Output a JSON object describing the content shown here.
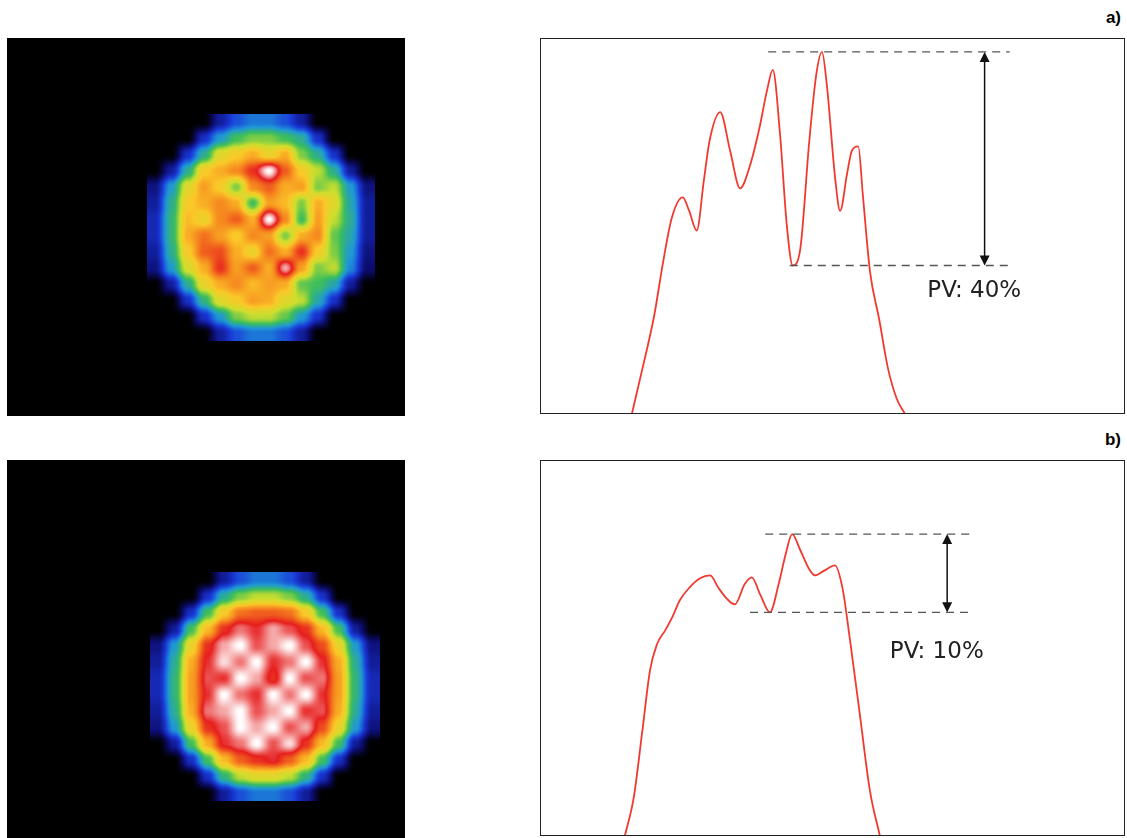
{
  "chart_data": [
    {
      "type": "heatmap",
      "xlim": [
        0,
        398
      ],
      "ylim": [
        0,
        380
      ],
      "tick_labels": false,
      "grid": false,
      "zlim": [
        0,
        1
      ],
      "cells_xlim": [
        140,
        368
      ],
      "cells_ylim": [
        76,
        304
      ],
      "cells": [
        [
          0,
          0,
          0,
          0,
          0.15,
          0.25,
          0.3,
          0.3,
          0.25,
          0.15,
          0,
          0,
          0,
          0
        ],
        [
          0,
          0,
          0,
          0.2,
          0.35,
          0.45,
          0.5,
          0.5,
          0.45,
          0.4,
          0.2,
          0,
          0,
          0
        ],
        [
          0,
          0,
          0.2,
          0.4,
          0.6,
          0.65,
          0.7,
          0.62,
          0.7,
          0.5,
          0.4,
          0.2,
          0,
          0
        ],
        [
          0,
          0.15,
          0.4,
          0.65,
          0.7,
          0.75,
          0.85,
          1.0,
          0.8,
          0.65,
          0.55,
          0.4,
          0.15,
          0
        ],
        [
          0.12,
          0.35,
          0.6,
          0.72,
          0.65,
          0.5,
          0.75,
          0.8,
          0.7,
          0.72,
          0.5,
          0.55,
          0.35,
          0.12
        ],
        [
          0.15,
          0.4,
          0.65,
          0.7,
          0.75,
          0.7,
          0.45,
          0.72,
          0.68,
          0.5,
          0.7,
          0.6,
          0.38,
          0.15
        ],
        [
          0.18,
          0.42,
          0.68,
          0.62,
          0.75,
          0.8,
          0.7,
          1.0,
          0.75,
          0.45,
          0.72,
          0.55,
          0.4,
          0.15
        ],
        [
          0.18,
          0.42,
          0.7,
          0.78,
          0.72,
          0.65,
          0.75,
          0.72,
          0.5,
          0.7,
          0.75,
          0.48,
          0.38,
          0.15
        ],
        [
          0.15,
          0.4,
          0.65,
          0.8,
          0.82,
          0.7,
          0.62,
          0.78,
          0.7,
          0.85,
          0.65,
          0.5,
          0.35,
          0.12
        ],
        [
          0.12,
          0.35,
          0.58,
          0.7,
          0.85,
          0.72,
          0.8,
          0.7,
          0.95,
          0.72,
          0.5,
          0.55,
          0.32,
          0.1
        ],
        [
          0,
          0.15,
          0.4,
          0.62,
          0.7,
          0.75,
          0.68,
          0.72,
          0.7,
          0.48,
          0.45,
          0.38,
          0.15,
          0
        ],
        [
          0,
          0,
          0.2,
          0.42,
          0.6,
          0.65,
          0.72,
          0.7,
          0.6,
          0.55,
          0.38,
          0.2,
          0,
          0
        ],
        [
          0,
          0,
          0,
          0.2,
          0.35,
          0.5,
          0.55,
          0.55,
          0.48,
          0.35,
          0.2,
          0,
          0,
          0
        ],
        [
          0,
          0,
          0,
          0,
          0.15,
          0.25,
          0.3,
          0.3,
          0.25,
          0.15,
          0,
          0,
          0,
          0
        ]
      ]
    },
    {
      "type": "line",
      "panel": "a)",
      "xlim": [
        0,
        100
      ],
      "ylim": [
        0,
        100
      ],
      "tick_labels": false,
      "grid": false,
      "color": "#f03a30",
      "x": [
        15.7,
        17.5,
        19.5,
        21,
        22.5,
        24.4,
        25.5,
        26.8,
        28,
        29,
        30.8,
        32.5,
        34.2,
        35.9,
        37.5,
        38.8,
        39.8,
        41,
        42.2,
        43.2,
        44.5,
        46,
        47.2,
        48.2,
        49,
        50.5,
        51.3,
        52.5,
        53.3,
        54.4,
        55.2,
        56.4,
        58,
        59.5,
        61,
        62.4
      ],
      "values": [
        0,
        12,
        26,
        40,
        52,
        57.6,
        54,
        48.8,
        62,
        72.8,
        80.3,
        70,
        60,
        66.1,
        76,
        86,
        91.5,
        75,
        50,
        39.5,
        44,
        72,
        90,
        96.3,
        88,
        62,
        54,
        64,
        70,
        71.2,
        58,
        38,
        25,
        12,
        4,
        0
      ],
      "peak_valley": {
        "top": 96.3,
        "bottom": 39.5,
        "top_x": [
          39,
          80.3
        ],
        "bottom_x": [
          42.7,
          80.3
        ],
        "arrow_x": 76
      },
      "annotations": [
        {
          "text": "PV: 40%",
          "x": 66.2,
          "y": 32.8
        }
      ]
    },
    {
      "type": "heatmap",
      "xlim": [
        0,
        398
      ],
      "ylim": [
        0,
        380
      ],
      "tick_labels": false,
      "grid": false,
      "zlim": [
        0,
        1
      ],
      "cells_xlim": [
        143,
        373
      ],
      "cells_ylim": [
        113,
        343
      ],
      "cells": [
        [
          0,
          0,
          0,
          0,
          0.15,
          0.25,
          0.3,
          0.3,
          0.25,
          0.15,
          0,
          0,
          0,
          0
        ],
        [
          0,
          0,
          0,
          0.2,
          0.4,
          0.5,
          0.55,
          0.55,
          0.5,
          0.4,
          0.2,
          0,
          0,
          0
        ],
        [
          0,
          0,
          0.2,
          0.45,
          0.65,
          0.78,
          0.8,
          0.8,
          0.78,
          0.65,
          0.45,
          0.2,
          0,
          0
        ],
        [
          0,
          0.15,
          0.45,
          0.68,
          0.85,
          0.92,
          0.88,
          0.95,
          0.9,
          0.85,
          0.68,
          0.45,
          0.15,
          0
        ],
        [
          0.12,
          0.35,
          0.62,
          0.85,
          0.95,
          1.0,
          0.9,
          0.95,
          1.0,
          0.9,
          0.82,
          0.62,
          0.35,
          0.12
        ],
        [
          0.15,
          0.4,
          0.7,
          0.88,
          0.98,
          0.92,
          1.0,
          0.88,
          0.92,
          1.0,
          0.88,
          0.7,
          0.4,
          0.15
        ],
        [
          0.18,
          0.42,
          0.72,
          0.9,
          0.88,
          1.0,
          0.95,
          0.85,
          1.0,
          0.9,
          0.92,
          0.72,
          0.42,
          0.18
        ],
        [
          0.18,
          0.42,
          0.72,
          0.88,
          1.0,
          0.92,
          0.88,
          1.0,
          0.92,
          1.0,
          0.88,
          0.72,
          0.42,
          0.18
        ],
        [
          0.15,
          0.4,
          0.7,
          0.92,
          0.95,
          1.0,
          0.9,
          0.95,
          1.0,
          0.88,
          0.9,
          0.7,
          0.4,
          0.15
        ],
        [
          0.12,
          0.35,
          0.62,
          0.85,
          0.9,
          1.0,
          0.95,
          1.0,
          0.9,
          0.95,
          0.82,
          0.62,
          0.35,
          0.12
        ],
        [
          0,
          0.15,
          0.45,
          0.7,
          0.88,
          0.92,
          1.0,
          0.9,
          0.98,
          0.85,
          0.68,
          0.45,
          0.15,
          0
        ],
        [
          0,
          0,
          0.2,
          0.45,
          0.68,
          0.8,
          0.85,
          0.88,
          0.8,
          0.68,
          0.45,
          0.2,
          0,
          0
        ],
        [
          0,
          0,
          0,
          0.2,
          0.42,
          0.55,
          0.6,
          0.6,
          0.55,
          0.42,
          0.2,
          0,
          0,
          0
        ],
        [
          0,
          0,
          0,
          0,
          0.15,
          0.25,
          0.3,
          0.3,
          0.25,
          0.15,
          0,
          0,
          0,
          0
        ]
      ]
    },
    {
      "type": "line",
      "panel": "b)",
      "xlim": [
        0,
        100
      ],
      "ylim": [
        0,
        100
      ],
      "tick_labels": false,
      "grid": false,
      "color": "#f03a30",
      "x": [
        14.5,
        16,
        17.5,
        18.8,
        20,
        21.4,
        22.7,
        23.9,
        25.5,
        27.3,
        29.1,
        30.5,
        32,
        33.3,
        35,
        36.2,
        37.7,
        39.3,
        40.8,
        42,
        43.1,
        44.5,
        46,
        47,
        48.5,
        50.4,
        51.7,
        53,
        54.7,
        56.4,
        58.1
      ],
      "values": [
        0,
        10,
        28,
        44,
        51,
        54.7,
        58.5,
        62.7,
        66,
        68.5,
        69.3,
        66,
        63,
        61.6,
        67,
        68.8,
        64,
        59.5,
        67,
        75,
        80.3,
        76,
        71,
        69.3,
        70.5,
        72,
        66,
        52,
        32,
        12,
        0
      ],
      "peak_valley": {
        "top": 80.3,
        "bottom": 59.5,
        "top_x": [
          38.5,
          73.5
        ],
        "bottom_x": [
          35.9,
          73.5
        ],
        "arrow_x": 69.6
      },
      "annotations": [
        {
          "text": "PV: 10%",
          "x": 59.8,
          "y": 48.8
        }
      ]
    }
  ]
}
